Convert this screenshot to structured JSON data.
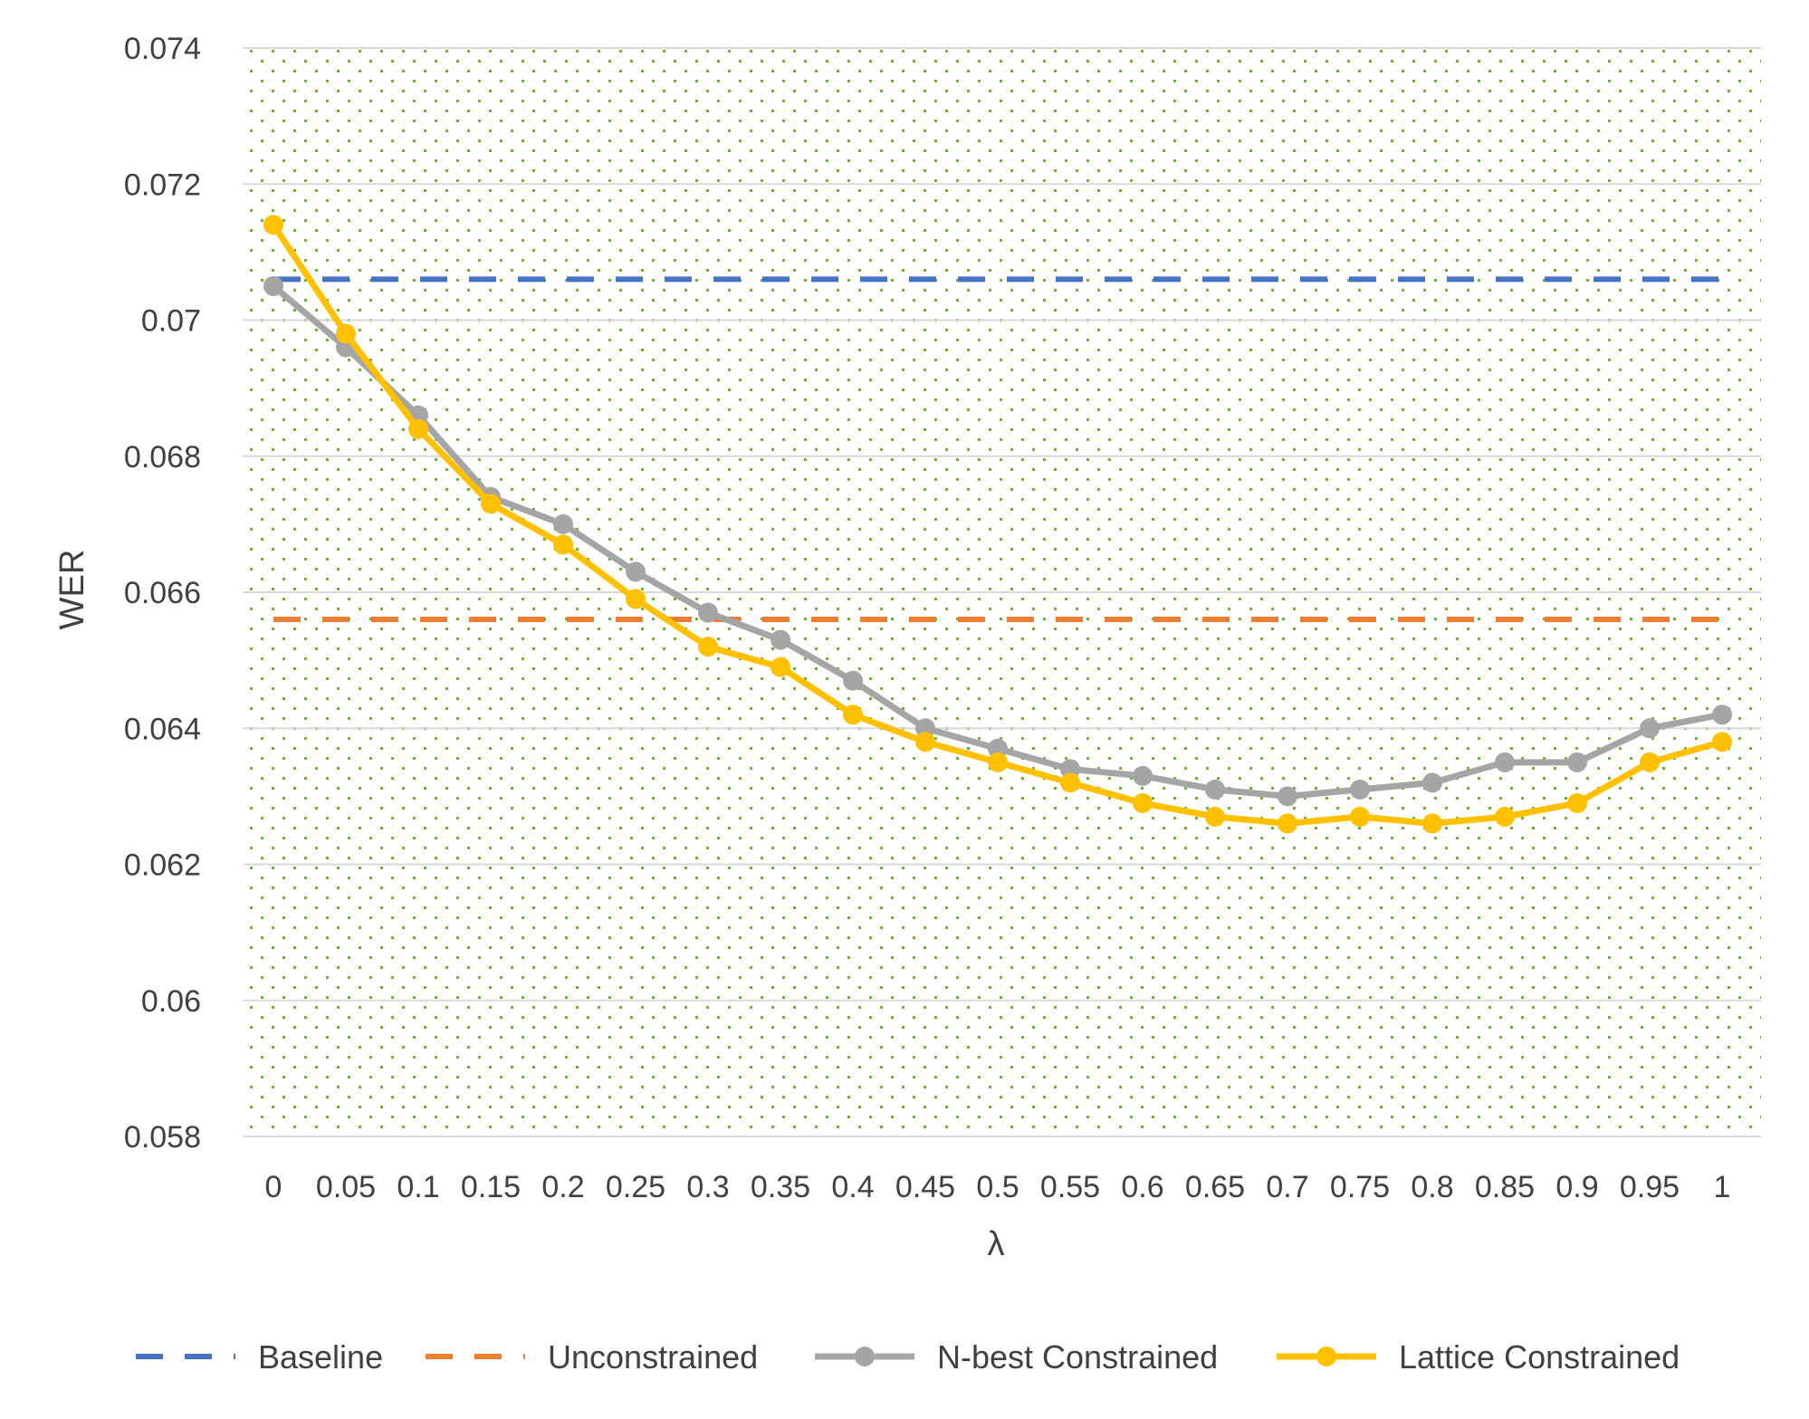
{
  "chart_data": {
    "type": "line",
    "title": "",
    "xlabel": "λ",
    "ylabel": "WER",
    "ylim": [
      0.058,
      0.074
    ],
    "y_ticks": [
      "0.058",
      "0.06",
      "0.062",
      "0.064",
      "0.066",
      "0.068",
      "0.07",
      "0.072",
      "0.074"
    ],
    "y_tick_values": [
      0.058,
      0.06,
      0.062,
      0.064,
      0.066,
      0.068,
      0.07,
      0.072,
      0.074
    ],
    "categories": [
      "0",
      "0.05",
      "0.1",
      "0.15",
      "0.2",
      "0.25",
      "0.3",
      "0.35",
      "0.4",
      "0.45",
      "0.5",
      "0.55",
      "0.6",
      "0.65",
      "0.7",
      "0.75",
      "0.8",
      "0.85",
      "0.9",
      "0.95",
      "1"
    ],
    "grid": true,
    "legend_position": "bottom",
    "plot_fill": "dotted green pattern",
    "series": [
      {
        "name": "Baseline",
        "style": "dashed",
        "color": "#4472C4",
        "values": [
          0.0706,
          0.0706,
          0.0706,
          0.0706,
          0.0706,
          0.0706,
          0.0706,
          0.0706,
          0.0706,
          0.0706,
          0.0706,
          0.0706,
          0.0706,
          0.0706,
          0.0706,
          0.0706,
          0.0706,
          0.0706,
          0.0706,
          0.0706,
          0.0706
        ]
      },
      {
        "name": "Unconstrained",
        "style": "dashed",
        "color": "#ED7D31",
        "values": [
          0.0656,
          0.0656,
          0.0656,
          0.0656,
          0.0656,
          0.0656,
          0.0656,
          0.0656,
          0.0656,
          0.0656,
          0.0656,
          0.0656,
          0.0656,
          0.0656,
          0.0656,
          0.0656,
          0.0656,
          0.0656,
          0.0656,
          0.0656,
          0.0656
        ]
      },
      {
        "name": "N-best Constrained",
        "style": "solid-marker",
        "color": "#A5A5A5",
        "values": [
          0.0705,
          0.0696,
          0.0686,
          0.0674,
          0.067,
          0.0663,
          0.0657,
          0.0653,
          0.0647,
          0.064,
          0.0637,
          0.0634,
          0.0633,
          0.0631,
          0.063,
          0.0631,
          0.0632,
          0.0635,
          0.0635,
          0.064,
          0.0642
        ]
      },
      {
        "name": "Lattice Constrained",
        "style": "solid-marker",
        "color": "#FFC000",
        "values": [
          0.0714,
          0.0698,
          0.0684,
          0.0673,
          0.0667,
          0.0659,
          0.0652,
          0.0649,
          0.0642,
          0.0638,
          0.0635,
          0.0632,
          0.0629,
          0.0627,
          0.0626,
          0.0627,
          0.0626,
          0.0627,
          0.0629,
          0.0635,
          0.0638
        ]
      }
    ]
  }
}
